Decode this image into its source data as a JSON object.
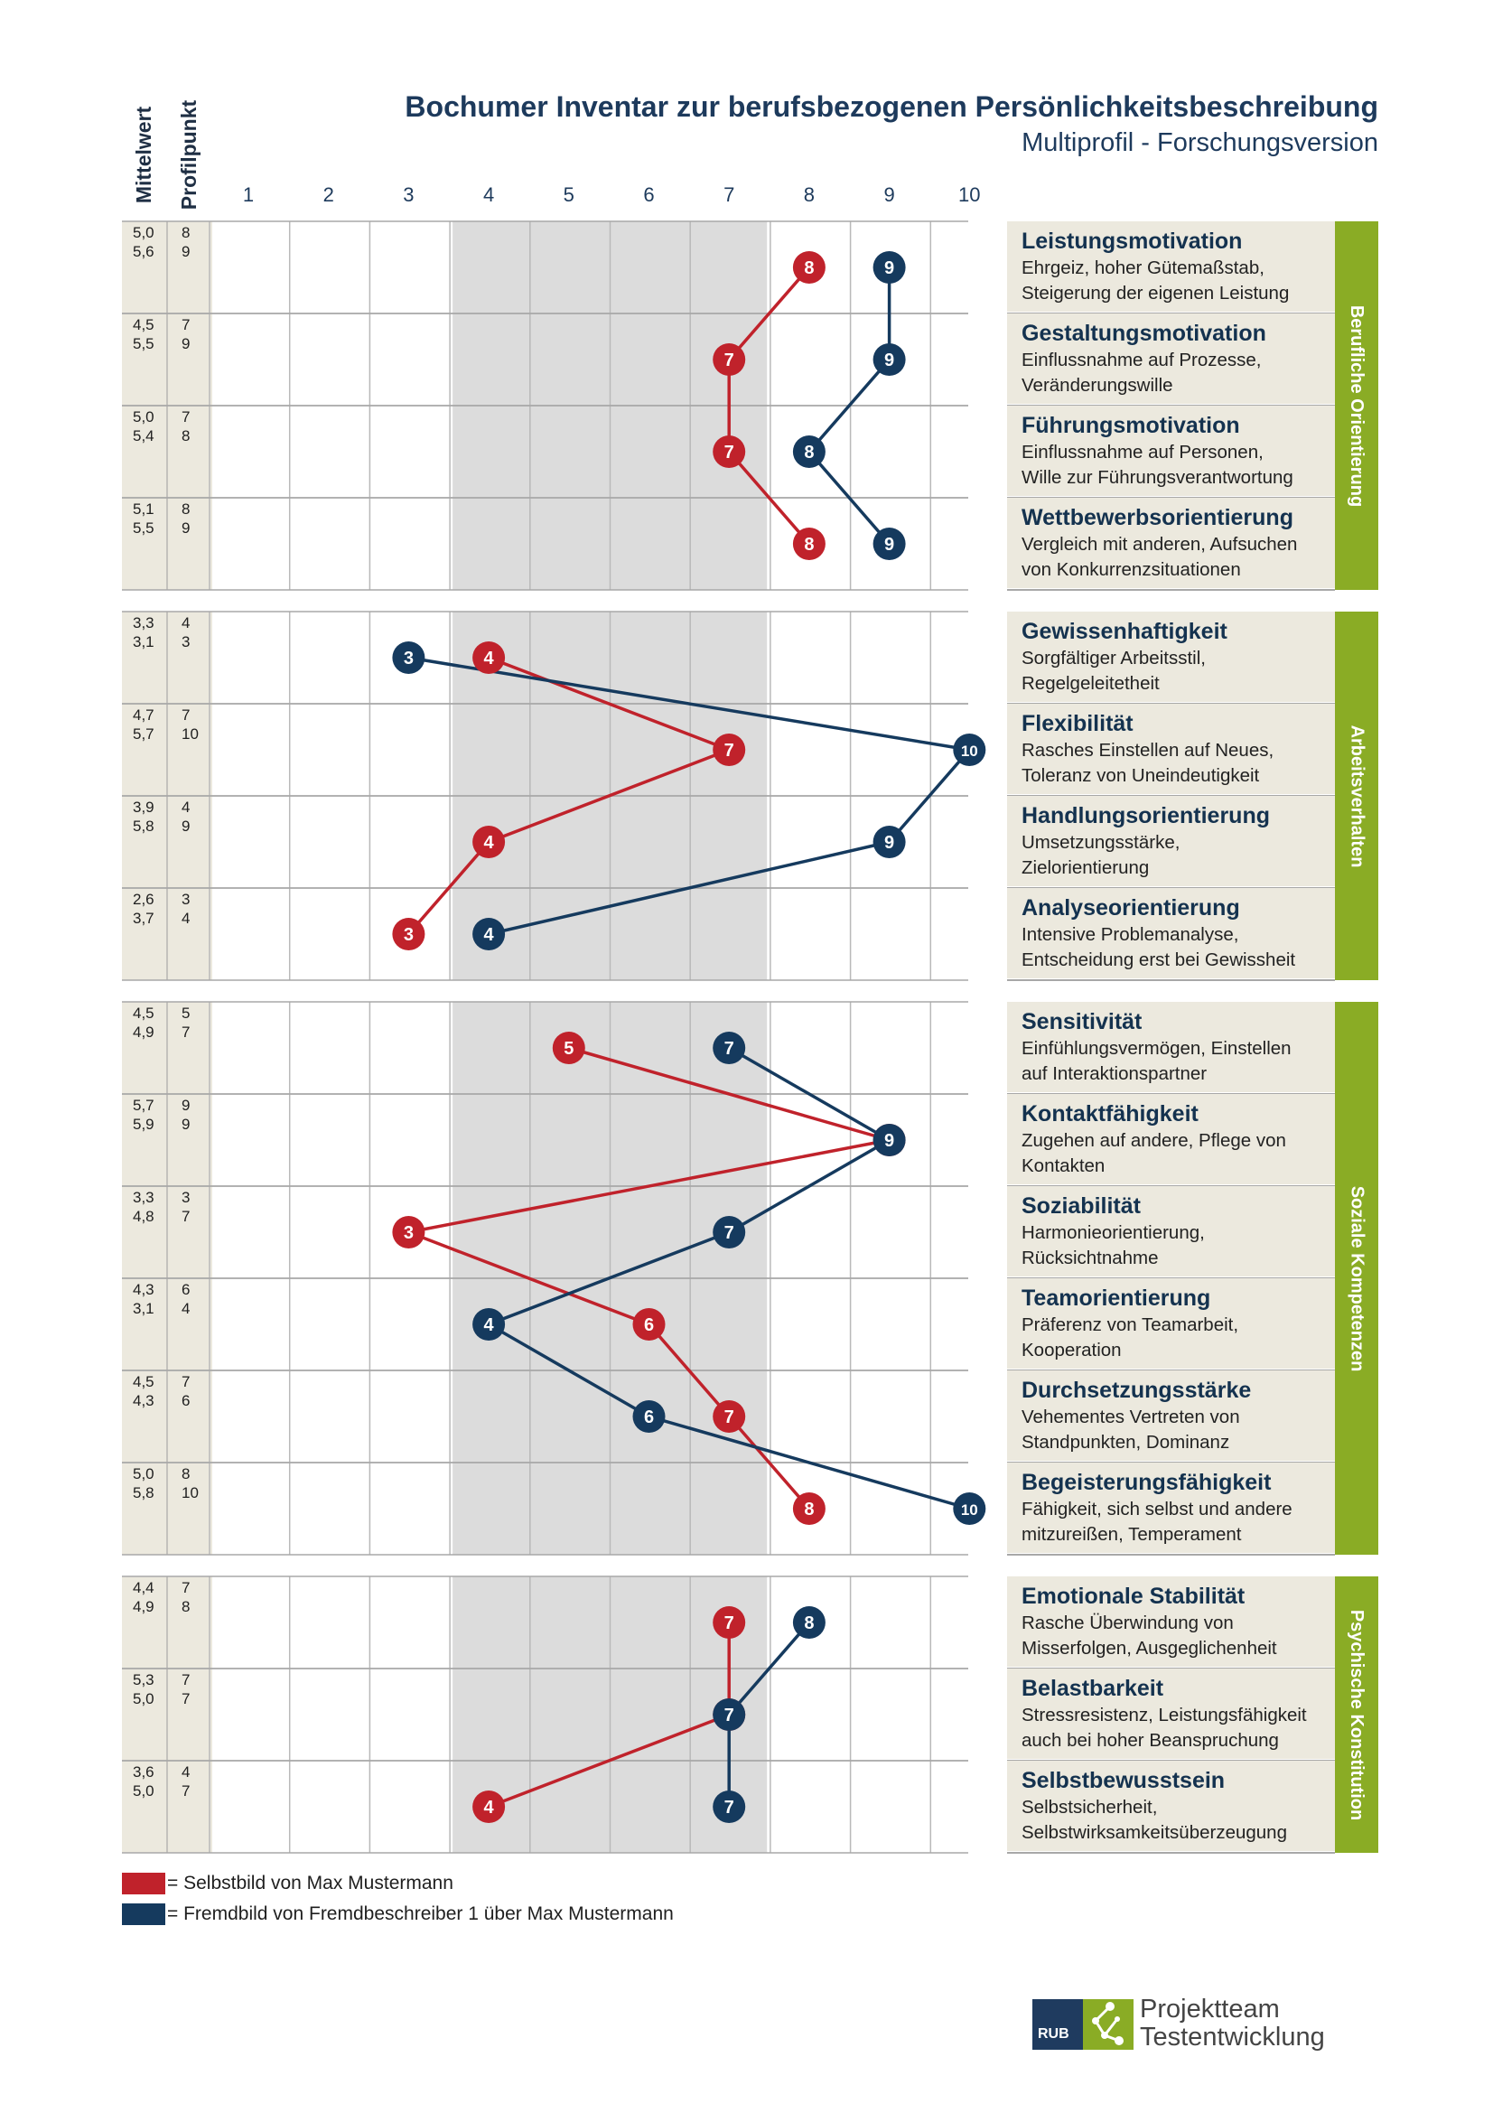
{
  "header": {
    "title": "Bochumer Inventar zur berufsbezogenen Persönlichkeitsbeschreibung",
    "subtitle": "Multiprofil - Forschungsversion"
  },
  "columns": {
    "mean_label": "Mittelwert",
    "profile_label": "Profilpunkt"
  },
  "legend": {
    "self": {
      "color": "#c0222b",
      "text": "= Selbstbild von Max Mustermann"
    },
    "other": {
      "color": "#153a5e",
      "text": "= Fremdbild von Fremdbeschreiber 1 über Max Mustermann"
    }
  },
  "logo": {
    "badge": "RUB",
    "line1": "Projektteam",
    "line2": "Testentwicklung"
  },
  "colors": {
    "self": "#c0222b",
    "other": "#153a5e",
    "section_bar": "#8aac25",
    "label_bg": "#ece9de",
    "mid_band": "#dcdcdc",
    "grid": "#b9b9b9"
  },
  "chart_data": {
    "type": "line",
    "x_axis": {
      "ticks": [
        1,
        2,
        3,
        4,
        5,
        6,
        7,
        8,
        9,
        10
      ],
      "range": [
        1,
        10
      ],
      "average_band": [
        4,
        7
      ]
    },
    "series": [
      {
        "name": "Selbstbild von Max Mustermann",
        "key": "self",
        "color": "#c0222b"
      },
      {
        "name": "Fremdbild von Fremdbeschreiber 1 über Max Mustermann",
        "key": "other",
        "color": "#153a5e"
      }
    ],
    "sections": [
      {
        "name": "Berufliche Orientierung",
        "scales": [
          {
            "title": "Leistungsmotivation",
            "desc": [
              "Ehrgeiz, hoher Gütemaßstab,",
              "Steigerung der eigenen Leistung"
            ],
            "mean": [
              "5,0",
              "5,6"
            ],
            "profile": [
              "8",
              "9"
            ],
            "self": 8,
            "other": 9
          },
          {
            "title": "Gestaltungsmotivation",
            "desc": [
              "Einflussnahme auf Prozesse,",
              "Veränderungswille"
            ],
            "mean": [
              "4,5",
              "5,5"
            ],
            "profile": [
              "7",
              "9"
            ],
            "self": 7,
            "other": 9
          },
          {
            "title": "Führungsmotivation",
            "desc": [
              "Einflussnahme auf Personen,",
              "Wille zur Führungsverantwortung"
            ],
            "mean": [
              "5,0",
              "5,4"
            ],
            "profile": [
              "7",
              "8"
            ],
            "self": 7,
            "other": 8
          },
          {
            "title": "Wettbewerbsorientierung",
            "desc": [
              "Vergleich mit anderen, Aufsuchen",
              "von Konkurrenzsituationen"
            ],
            "mean": [
              "5,1",
              "5,5"
            ],
            "profile": [
              "8",
              "9"
            ],
            "self": 8,
            "other": 9
          }
        ]
      },
      {
        "name": "Arbeitsverhalten",
        "scales": [
          {
            "title": "Gewissenhaftigkeit",
            "desc": [
              "Sorgfältiger Arbeitsstil,",
              "Regelgeleitetheit"
            ],
            "mean": [
              "3,3",
              "3,1"
            ],
            "profile": [
              "4",
              "3"
            ],
            "self": 4,
            "other": 3
          },
          {
            "title": "Flexibilität",
            "desc": [
              "Rasches Einstellen auf Neues,",
              "Toleranz von Uneindeutigkeit"
            ],
            "mean": [
              "4,7",
              "5,7"
            ],
            "profile": [
              "7",
              "10"
            ],
            "self": 7,
            "other": 10
          },
          {
            "title": "Handlungsorientierung",
            "desc": [
              "Umsetzungsstärke,",
              "Zielorientierung"
            ],
            "mean": [
              "3,9",
              "5,8"
            ],
            "profile": [
              "4",
              "9"
            ],
            "self": 4,
            "other": 9
          },
          {
            "title": "Analyseorientierung",
            "desc": [
              "Intensive Problemanalyse,",
              "Entscheidung erst bei Gewissheit"
            ],
            "mean": [
              "2,6",
              "3,7"
            ],
            "profile": [
              "3",
              "4"
            ],
            "self": 3,
            "other": 4
          }
        ]
      },
      {
        "name": "Soziale Kompetenzen",
        "scales": [
          {
            "title": "Sensitivität",
            "desc": [
              "Einfühlungsvermögen, Einstellen",
              "auf Interaktionspartner"
            ],
            "mean": [
              "4,5",
              "4,9"
            ],
            "profile": [
              "5",
              "7"
            ],
            "self": 5,
            "other": 7
          },
          {
            "title": "Kontaktfähigkeit",
            "desc": [
              "Zugehen auf andere, Pflege von",
              "Kontakten"
            ],
            "mean": [
              "5,7",
              "5,9"
            ],
            "profile": [
              "9",
              "9"
            ],
            "self": 9,
            "other": 9
          },
          {
            "title": "Soziabilität",
            "desc": [
              "Harmonieorientierung,",
              "Rücksichtnahme"
            ],
            "mean": [
              "3,3",
              "4,8"
            ],
            "profile": [
              "3",
              "7"
            ],
            "self": 3,
            "other": 7
          },
          {
            "title": "Teamorientierung",
            "desc": [
              "Präferenz von Teamarbeit,",
              "Kooperation"
            ],
            "mean": [
              "4,3",
              "3,1"
            ],
            "profile": [
              "6",
              "4"
            ],
            "self": 6,
            "other": 4
          },
          {
            "title": "Durchsetzungsstärke",
            "desc": [
              "Vehementes Vertreten von",
              "Standpunkten, Dominanz"
            ],
            "mean": [
              "4,5",
              "4,3"
            ],
            "profile": [
              "7",
              "6"
            ],
            "self": 7,
            "other": 6
          },
          {
            "title": "Begeisterungsfähigkeit",
            "desc": [
              "Fähigkeit, sich selbst und andere",
              "mitzureißen, Temperament"
            ],
            "mean": [
              "5,0",
              "5,8"
            ],
            "profile": [
              "8",
              "10"
            ],
            "self": 8,
            "other": 10
          }
        ]
      },
      {
        "name": "Psychische Konstitution",
        "scales": [
          {
            "title": "Emotionale Stabilität",
            "desc": [
              "Rasche Überwindung von",
              "Misserfolgen, Ausgeglichenheit"
            ],
            "mean": [
              "4,4",
              "4,9"
            ],
            "profile": [
              "7",
              "8"
            ],
            "self": 7,
            "other": 8
          },
          {
            "title": "Belastbarkeit",
            "desc": [
              "Stressresistenz, Leistungsfähigkeit",
              "auch bei hoher Beanspruchung"
            ],
            "mean": [
              "5,3",
              "5,0"
            ],
            "profile": [
              "7",
              "7"
            ],
            "self": 7,
            "other": 7
          },
          {
            "title": "Selbstbewusstsein",
            "desc": [
              "Selbstsicherheit,",
              "Selbstwirksamkeitsüberzeugung"
            ],
            "mean": [
              "3,6",
              "5,0"
            ],
            "profile": [
              "4",
              "7"
            ],
            "self": 4,
            "other": 7
          }
        ]
      }
    ]
  }
}
